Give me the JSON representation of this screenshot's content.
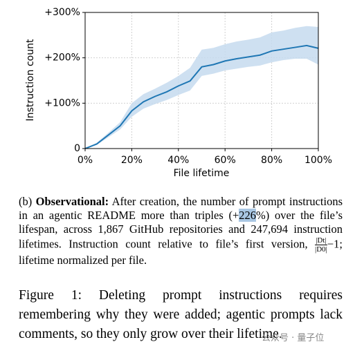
{
  "chart_data": {
    "type": "line",
    "ylabel": "Instruction count",
    "xlabel": "File lifetime",
    "x": [
      0,
      5,
      10,
      15,
      20,
      25,
      30,
      35,
      40,
      45,
      50,
      55,
      60,
      65,
      70,
      75,
      80,
      85,
      90,
      95,
      100
    ],
    "values": [
      0,
      10,
      30,
      50,
      83,
      103,
      115,
      125,
      138,
      149,
      180,
      185,
      193,
      198,
      202,
      206,
      215,
      219,
      223,
      227,
      221
    ],
    "lower": [
      0,
      8,
      25,
      42,
      70,
      88,
      98,
      107,
      118,
      128,
      160,
      165,
      172,
      176,
      180,
      183,
      190,
      195,
      198,
      198,
      185
    ],
    "upper": [
      0,
      13,
      35,
      58,
      100,
      120,
      132,
      145,
      160,
      178,
      218,
      222,
      230,
      236,
      240,
      245,
      256,
      260,
      266,
      270,
      268
    ],
    "color": "#1f77b4",
    "band_color": "#c6dbef",
    "xlim": [
      0,
      100
    ],
    "ylim": [
      0,
      300
    ],
    "xticks": [
      {
        "value": 0,
        "label": "0%"
      },
      {
        "value": 20,
        "label": "20%"
      },
      {
        "value": 40,
        "label": "40%"
      },
      {
        "value": 60,
        "label": "60%"
      },
      {
        "value": 80,
        "label": "80%"
      },
      {
        "value": 100,
        "label": "100%"
      }
    ],
    "yticks": [
      0,
      {
        "value": 100,
        "label": "+100%"
      },
      {
        "value": 200,
        "label": "+200%"
      },
      {
        "value": 300,
        "label": "+300%"
      }
    ],
    "grid": true
  },
  "caption_b": {
    "label": "(b)",
    "bold": "Observational:",
    "text_1": "After creation, the number of prompt instructions in an agentic README more than triples (+",
    "highlight": "226",
    "text_2": "%) over the file’s lifespan, across 1,867 GitHub repositories and 247,694 instruction lifetimes. Instruction count relative to file’s first version,",
    "numerator": "|Dt|",
    "denominator": "|D0|",
    "text_3": "−1; lifetime normalized per file."
  },
  "figure_caption": "Figure 1: Deleting prompt instructions requires remembering why they were added; agentic prompts lack comments, so they only grow over their lifetime.",
  "watermark": "公众号 · 量子位"
}
